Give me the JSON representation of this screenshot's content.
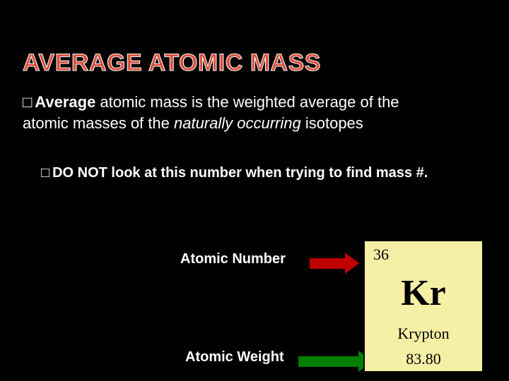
{
  "title": "AVERAGE ATOMIC MASS",
  "bullet1": {
    "marker": "□",
    "lead_bold": "Average",
    "mid": " atomic mass is the weighted average of the atomic masses of the ",
    "italic": "naturally occurring",
    "tail": " isotopes"
  },
  "bullet2": {
    "marker": "□",
    "text": "DO NOT look at this number when trying to find mass #."
  },
  "labels": {
    "atomic_number": "Atomic Number",
    "atomic_weight": "Atomic Weight"
  },
  "element": {
    "atomic_number": "36",
    "symbol": "Kr",
    "name": "Krypton",
    "weight": "83.80",
    "box_bg": "#f5f0a5",
    "border_color": "#000000"
  },
  "colors": {
    "title": "#d94f3a",
    "title_outline": "#ffffff",
    "background": "#000000",
    "text": "#ffffff",
    "arrow_number": "#c00000",
    "arrow_weight": "#008000"
  },
  "fonts": {
    "title_size": 34,
    "body_size": 22,
    "sub_size": 20,
    "symbol_size": 52,
    "element_text_size": 22
  }
}
